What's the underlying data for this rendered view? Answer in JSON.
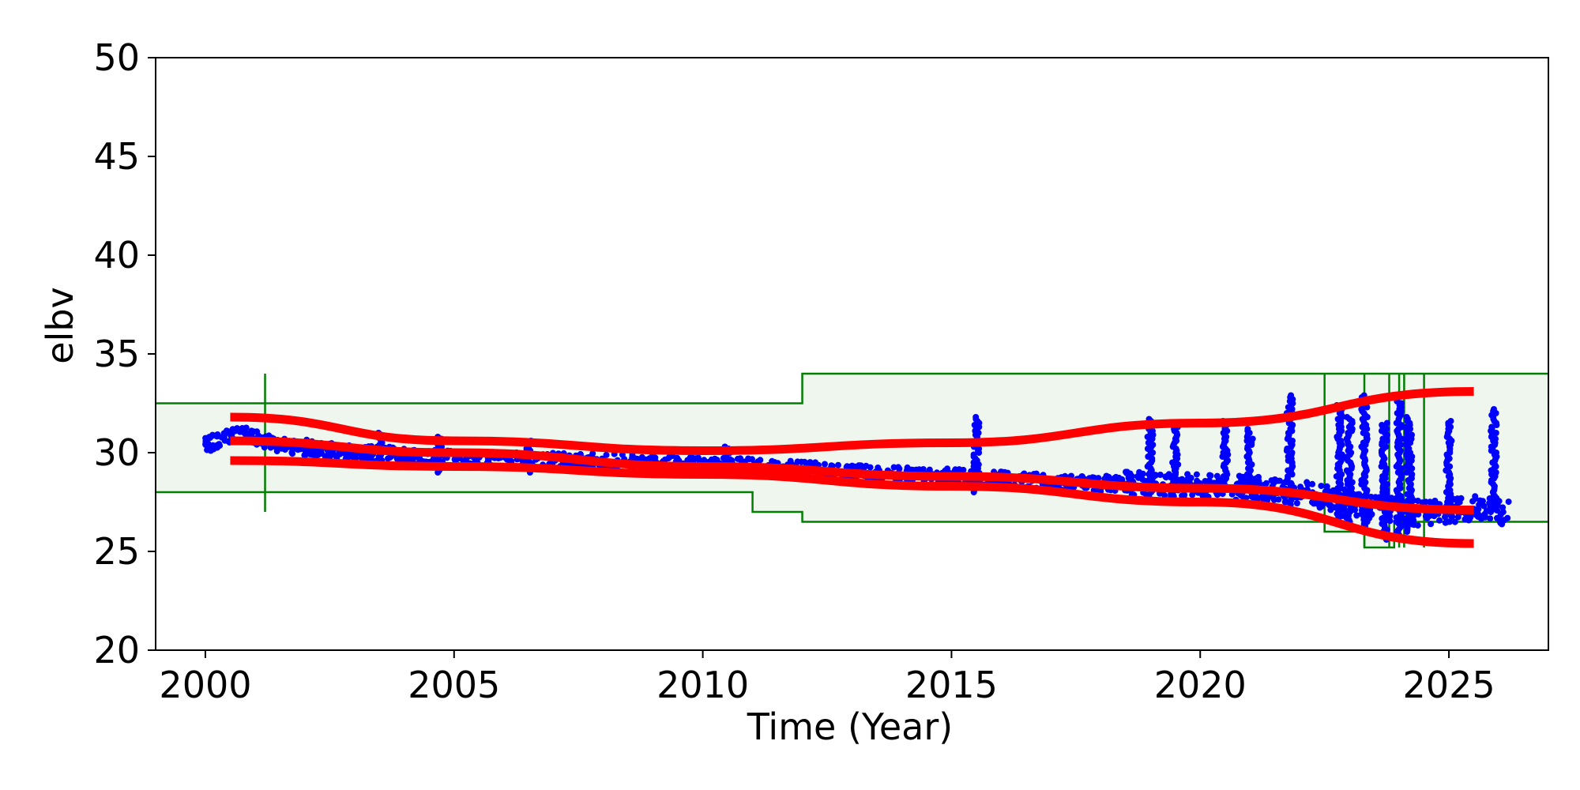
{
  "chart_data": {
    "type": "scatter",
    "xlabel": "Time (Year)",
    "ylabel": "elbv",
    "xlim": [
      1999.0,
      2027.0
    ],
    "ylim": [
      20,
      50
    ],
    "x_ticks": [
      2000,
      2005,
      2010,
      2015,
      2020,
      2025
    ],
    "y_ticks": [
      20,
      25,
      30,
      35,
      40,
      45,
      50
    ],
    "grid": false,
    "colors": {
      "points": "#0000ff",
      "fits": "#ff0000",
      "limits": "#007f00",
      "band_fill": "#eef6ee"
    },
    "limit_band": {
      "upper": [
        {
          "x": [
            1999.0,
            2012.0
          ],
          "y": 32.5
        },
        {
          "x": [
            2012.0,
            2027.0
          ],
          "y": 34.0
        }
      ],
      "lower": [
        {
          "x": [
            1999.0,
            2011.0
          ],
          "y": 28.0
        },
        {
          "x": [
            2011.0,
            2012.0
          ],
          "y": 27.0
        },
        {
          "x": [
            2012.0,
            2022.5
          ],
          "y": 26.5
        },
        {
          "x": [
            2022.5,
            2023.3
          ],
          "y": 26.0
        },
        {
          "x": [
            2023.3,
            2023.9
          ],
          "y": 25.2
        },
        {
          "x": [
            2023.9,
            2027.0
          ],
          "y": 26.5
        }
      ],
      "markers": [
        {
          "x": 2001.2,
          "y_range": [
            27.0,
            34.0
          ]
        },
        {
          "x": 2022.5,
          "y_range": [
            26.0,
            34.0
          ]
        },
        {
          "x": 2023.3,
          "y_range": [
            25.2,
            34.0
          ]
        },
        {
          "x": 2023.8,
          "y_range": [
            25.2,
            34.0
          ]
        },
        {
          "x": 2024.0,
          "y_range": [
            25.2,
            34.0
          ]
        },
        {
          "x": 2024.1,
          "y_range": [
            25.2,
            34.0
          ]
        },
        {
          "x": 2024.5,
          "y_range": [
            25.2,
            34.0
          ]
        }
      ]
    },
    "fit_lines": [
      {
        "x": [
          2000.5,
          2005,
          2010,
          2015,
          2020,
          2025.5
        ],
        "y": [
          31.8,
          30.6,
          30.1,
          30.5,
          31.5,
          33.1
        ]
      },
      {
        "x": [
          2000.5,
          2005,
          2010,
          2015,
          2020,
          2025.5
        ],
        "y": [
          30.6,
          30.0,
          29.3,
          28.8,
          28.2,
          27.1
        ]
      },
      {
        "x": [
          2000.5,
          2005,
          2010,
          2015,
          2020,
          2025.5
        ],
        "y": [
          29.6,
          29.3,
          28.9,
          28.3,
          27.5,
          25.4
        ]
      }
    ],
    "point_trend": [
      {
        "x": 2000.0,
        "y": 30.4
      },
      {
        "x": 2000.7,
        "y": 31.0
      },
      {
        "x": 2001.5,
        "y": 30.4
      },
      {
        "x": 2003.0,
        "y": 30.0
      },
      {
        "x": 2005.0,
        "y": 29.7
      },
      {
        "x": 2007.0,
        "y": 29.6
      },
      {
        "x": 2009.0,
        "y": 29.5
      },
      {
        "x": 2011.0,
        "y": 29.3
      },
      {
        "x": 2013.0,
        "y": 29.0
      },
      {
        "x": 2015.0,
        "y": 28.8
      },
      {
        "x": 2017.0,
        "y": 28.5
      },
      {
        "x": 2019.0,
        "y": 28.4
      },
      {
        "x": 2021.0,
        "y": 28.2
      },
      {
        "x": 2022.5,
        "y": 27.8
      },
      {
        "x": 2023.5,
        "y": 27.2
      },
      {
        "x": 2024.5,
        "y": 26.9
      },
      {
        "x": 2025.5,
        "y": 27.2
      },
      {
        "x": 2026.2,
        "y": 26.9
      }
    ],
    "point_spikes": [
      {
        "x": 2003.5,
        "y_range": [
          29.5,
          31.0
        ]
      },
      {
        "x": 2004.7,
        "y_range": [
          29.0,
          30.8
        ]
      },
      {
        "x": 2006.5,
        "y_range": [
          29.0,
          30.6
        ]
      },
      {
        "x": 2010.5,
        "y_range": [
          29.0,
          30.3
        ]
      },
      {
        "x": 2015.5,
        "y_range": [
          28.0,
          31.8
        ]
      },
      {
        "x": 2019.0,
        "y_range": [
          28.0,
          31.7
        ]
      },
      {
        "x": 2019.5,
        "y_range": [
          28.0,
          31.4
        ]
      },
      {
        "x": 2020.5,
        "y_range": [
          28.0,
          31.6
        ]
      },
      {
        "x": 2021.0,
        "y_range": [
          28.0,
          31.2
        ]
      },
      {
        "x": 2021.8,
        "y_range": [
          27.8,
          32.9
        ]
      },
      {
        "x": 2022.8,
        "y_range": [
          26.5,
          32.4
        ]
      },
      {
        "x": 2023.0,
        "y_range": [
          26.3,
          31.8
        ]
      },
      {
        "x": 2023.3,
        "y_range": [
          26.0,
          32.9
        ]
      },
      {
        "x": 2023.7,
        "y_range": [
          25.6,
          31.5
        ]
      },
      {
        "x": 2024.0,
        "y_range": [
          25.8,
          32.9
        ]
      },
      {
        "x": 2024.2,
        "y_range": [
          26.0,
          31.8
        ]
      },
      {
        "x": 2025.0,
        "y_range": [
          26.8,
          31.6
        ]
      },
      {
        "x": 2025.9,
        "y_range": [
          27.0,
          32.2
        ]
      }
    ]
  }
}
